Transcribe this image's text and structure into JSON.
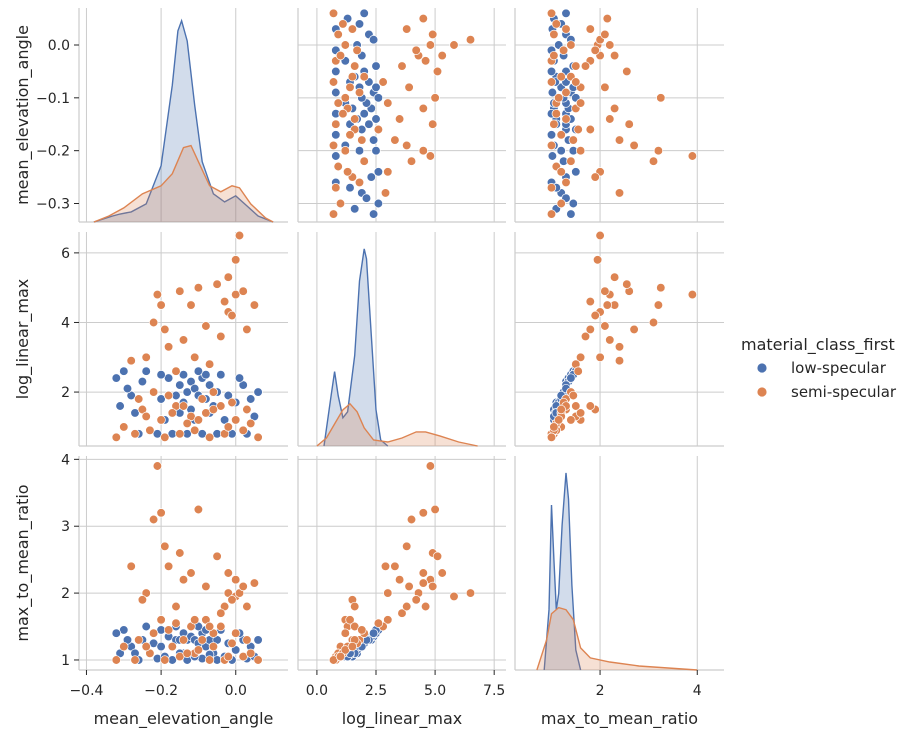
{
  "chart_data": {
    "type": "scatter",
    "kind": "pairplot",
    "variables": [
      "mean_elevation_angle",
      "log_linear_max",
      "max_to_mean_ratio"
    ],
    "hue": "material_class_first",
    "legend": {
      "title": "material_class_first",
      "placement": "right",
      "entries": [
        {
          "name": "low-specular",
          "color": "#4c72b0"
        },
        {
          "name": "semi-specular",
          "color": "#dd8452"
        }
      ]
    },
    "grid": true,
    "diagonal": "kde",
    "axes": {
      "mean_elevation_angle": {
        "range": [
          -0.42,
          0.14
        ],
        "ticks": [
          -0.4,
          -0.2,
          0.0
        ],
        "tick_labels": [
          "−0.4",
          "−0.2",
          "0.0"
        ],
        "row_range": [
          -0.335,
          0.07
        ],
        "row_ticks": [
          -0.3,
          -0.2,
          -0.1,
          0.0
        ],
        "row_tick_labels": [
          "−0.3",
          "−0.2",
          "−0.1",
          "0.0"
        ]
      },
      "log_linear_max": {
        "range": [
          -0.8,
          8.0
        ],
        "ticks": [
          0.0,
          2.5,
          5.0,
          7.5
        ],
        "tick_labels": [
          "0.0",
          "2.5",
          "5.0",
          "7.5"
        ],
        "row_range": [
          0.45,
          6.6
        ],
        "row_ticks": [
          2,
          4,
          6
        ],
        "row_tick_labels": [
          "2",
          "4",
          "6"
        ]
      },
      "max_to_mean_ratio": {
        "range": [
          0.25,
          4.55
        ],
        "ticks": [
          2,
          4
        ],
        "tick_labels": [
          "2",
          "4"
        ],
        "row_range": [
          0.85,
          4.05
        ],
        "row_ticks": [
          1,
          2,
          3,
          4
        ],
        "row_tick_labels": [
          "1",
          "2",
          "3",
          "4"
        ]
      }
    },
    "kde": {
      "mean_elevation_angle": {
        "low-specular": [
          [
            -0.38,
            0.0
          ],
          [
            -0.33,
            0.03
          ],
          [
            -0.31,
            0.04
          ],
          [
            -0.28,
            0.05
          ],
          [
            -0.24,
            0.09
          ],
          [
            -0.2,
            0.28
          ],
          [
            -0.17,
            0.68
          ],
          [
            -0.155,
            0.95
          ],
          [
            -0.145,
            1.0
          ],
          [
            -0.13,
            0.9
          ],
          [
            -0.11,
            0.58
          ],
          [
            -0.09,
            0.3
          ],
          [
            -0.06,
            0.14
          ],
          [
            -0.03,
            0.1
          ],
          [
            0.0,
            0.13
          ],
          [
            0.03,
            0.08
          ],
          [
            0.06,
            0.03
          ],
          [
            0.1,
            0.0
          ]
        ],
        "semi-specular": [
          [
            -0.38,
            0.0
          ],
          [
            -0.34,
            0.03
          ],
          [
            -0.3,
            0.07
          ],
          [
            -0.25,
            0.14
          ],
          [
            -0.2,
            0.18
          ],
          [
            -0.17,
            0.24
          ],
          [
            -0.14,
            0.37
          ],
          [
            -0.12,
            0.38
          ],
          [
            -0.1,
            0.3
          ],
          [
            -0.07,
            0.18
          ],
          [
            -0.04,
            0.15
          ],
          [
            -0.01,
            0.18
          ],
          [
            0.01,
            0.17
          ],
          [
            0.04,
            0.09
          ],
          [
            0.08,
            0.02
          ],
          [
            0.1,
            0.0
          ]
        ]
      },
      "log_linear_max": {
        "low-specular": [
          [
            0.3,
            0.0
          ],
          [
            0.6,
            0.25
          ],
          [
            0.75,
            0.37
          ],
          [
            0.9,
            0.25
          ],
          [
            1.1,
            0.14
          ],
          [
            1.3,
            0.17
          ],
          [
            1.6,
            0.45
          ],
          [
            1.8,
            0.82
          ],
          [
            2.0,
            0.98
          ],
          [
            2.1,
            0.93
          ],
          [
            2.3,
            0.55
          ],
          [
            2.5,
            0.18
          ],
          [
            2.7,
            0.03
          ],
          [
            3.0,
            0.0
          ]
        ],
        "semi-specular": [
          [
            0.0,
            0.0
          ],
          [
            0.4,
            0.04
          ],
          [
            0.8,
            0.12
          ],
          [
            1.1,
            0.18
          ],
          [
            1.4,
            0.21
          ],
          [
            1.7,
            0.17
          ],
          [
            2.0,
            0.09
          ],
          [
            2.4,
            0.03
          ],
          [
            3.0,
            0.02
          ],
          [
            3.6,
            0.04
          ],
          [
            4.2,
            0.07
          ],
          [
            4.6,
            0.07
          ],
          [
            5.2,
            0.05
          ],
          [
            6.0,
            0.02
          ],
          [
            6.8,
            0.0
          ]
        ]
      },
      "max_to_mean_ratio": {
        "low-specular": [
          [
            0.85,
            0.0
          ],
          [
            0.95,
            0.3
          ],
          [
            1.0,
            0.82
          ],
          [
            1.05,
            0.55
          ],
          [
            1.1,
            0.3
          ],
          [
            1.15,
            0.38
          ],
          [
            1.22,
            0.72
          ],
          [
            1.3,
            0.98
          ],
          [
            1.35,
            0.85
          ],
          [
            1.42,
            0.42
          ],
          [
            1.5,
            0.1
          ],
          [
            1.6,
            0.0
          ]
        ],
        "semi-specular": [
          [
            0.7,
            0.0
          ],
          [
            0.9,
            0.15
          ],
          [
            1.0,
            0.28
          ],
          [
            1.15,
            0.31
          ],
          [
            1.3,
            0.3
          ],
          [
            1.45,
            0.25
          ],
          [
            1.6,
            0.11
          ],
          [
            1.8,
            0.06
          ],
          [
            2.2,
            0.04
          ],
          [
            2.8,
            0.02
          ],
          [
            3.4,
            0.01
          ],
          [
            4.0,
            0.0
          ]
        ]
      }
    },
    "samples": {
      "low-specular": [
        [
          -0.25,
          2.3,
          1.3
        ],
        [
          -0.22,
          2.0,
          1.25
        ],
        [
          -0.2,
          1.8,
          1.2
        ],
        [
          -0.18,
          2.4,
          1.35
        ],
        [
          -0.16,
          1.9,
          1.3
        ],
        [
          -0.15,
          2.2,
          1.3
        ],
        [
          -0.14,
          2.5,
          1.4
        ],
        [
          -0.14,
          1.7,
          1.1
        ],
        [
          -0.13,
          2.0,
          1.3
        ],
        [
          -0.12,
          2.3,
          1.35
        ],
        [
          -0.12,
          1.5,
          1.05
        ],
        [
          -0.11,
          2.1,
          1.3
        ],
        [
          -0.1,
          1.9,
          1.25
        ],
        [
          -0.09,
          2.4,
          1.4
        ],
        [
          -0.08,
          1.8,
          1.2
        ],
        [
          -0.07,
          2.2,
          1.3
        ],
        [
          -0.06,
          1.6,
          1.1
        ],
        [
          -0.05,
          2.0,
          1.3
        ],
        [
          -0.04,
          2.5,
          1.45
        ],
        [
          -0.02,
          1.9,
          1.25
        ],
        [
          0.0,
          1.7,
          1.15
        ],
        [
          0.02,
          2.2,
          1.3
        ],
        [
          0.04,
          1.8,
          1.2
        ],
        [
          0.06,
          2.0,
          1.3
        ],
        [
          -0.3,
          2.6,
          1.45
        ],
        [
          -0.31,
          1.6,
          1.1
        ],
        [
          -0.28,
          1.9,
          1.2
        ],
        [
          -0.26,
          0.8,
          1.0
        ],
        [
          -0.21,
          0.8,
          1.02
        ],
        [
          -0.17,
          0.8,
          1.0
        ],
        [
          -0.13,
          0.8,
          1.0
        ],
        [
          -0.09,
          0.8,
          1.02
        ],
        [
          -0.05,
          0.8,
          1.0
        ],
        [
          -0.01,
          0.8,
          1.0
        ],
        [
          0.03,
          0.8,
          1.02
        ],
        [
          -0.19,
          1.2,
          1.05
        ],
        [
          -0.15,
          1.4,
          1.1
        ],
        [
          -0.11,
          1.2,
          1.05
        ],
        [
          -0.07,
          1.4,
          1.08
        ],
        [
          -0.03,
          1.2,
          1.05
        ],
        [
          -0.29,
          2.1,
          1.3
        ],
        [
          -0.24,
          2.6,
          1.5
        ],
        [
          -0.2,
          2.5,
          1.45
        ],
        [
          -0.1,
          2.6,
          1.5
        ],
        [
          0.05,
          1.3,
          1.05
        ],
        [
          -0.32,
          2.4,
          1.4
        ],
        [
          -0.27,
          1.4,
          1.1
        ],
        [
          -0.16,
          2.6,
          1.5
        ],
        [
          -0.08,
          2.5,
          1.45
        ],
        [
          0.01,
          2.4,
          1.4
        ]
      ],
      "semi-specular": [
        [
          -0.21,
          4.8,
          3.9
        ],
        [
          -0.2,
          4.5,
          3.2
        ],
        [
          -0.22,
          4.0,
          3.1
        ],
        [
          -0.19,
          3.8,
          2.7
        ],
        [
          -0.1,
          5.0,
          3.25
        ],
        [
          -0.15,
          4.9,
          2.6
        ],
        [
          -0.05,
          5.1,
          2.55
        ],
        [
          -0.12,
          4.5,
          2.3
        ],
        [
          -0.08,
          3.9,
          2.1
        ],
        [
          -0.02,
          4.3,
          2.0
        ],
        [
          0.0,
          5.8,
          1.95
        ],
        [
          0.01,
          6.5,
          2.0
        ],
        [
          -0.14,
          3.5,
          2.2
        ],
        [
          -0.24,
          3.0,
          2.0
        ],
        [
          -0.18,
          3.3,
          2.4
        ],
        [
          -0.03,
          4.6,
          1.8
        ],
        [
          -0.28,
          2.9,
          2.4
        ],
        [
          -0.25,
          1.5,
          1.9
        ],
        [
          -0.2,
          1.2,
          1.6
        ],
        [
          -0.16,
          1.6,
          1.8
        ],
        [
          -0.12,
          1.3,
          1.5
        ],
        [
          -0.08,
          1.4,
          1.6
        ],
        [
          -0.04,
          1.6,
          1.5
        ],
        [
          0.0,
          1.2,
          1.4
        ],
        [
          0.03,
          1.5,
          1.3
        ],
        [
          -0.3,
          1.0,
          1.2
        ],
        [
          -0.27,
          0.8,
          1.0
        ],
        [
          -0.23,
          0.9,
          1.1
        ],
        [
          -0.19,
          0.7,
          1.0
        ],
        [
          -0.15,
          0.8,
          1.05
        ],
        [
          -0.11,
          0.9,
          1.1
        ],
        [
          -0.07,
          0.7,
          1.0
        ],
        [
          -0.03,
          0.8,
          1.0
        ],
        [
          0.02,
          0.9,
          1.05
        ],
        [
          0.06,
          0.7,
          1.0
        ],
        [
          -0.32,
          0.7,
          1.0
        ],
        [
          -0.26,
          1.8,
          1.3
        ],
        [
          -0.22,
          2.0,
          1.4
        ],
        [
          -0.17,
          1.4,
          1.2
        ],
        [
          -0.13,
          1.1,
          1.1
        ],
        [
          -0.09,
          1.8,
          1.3
        ],
        [
          -0.06,
          2.0,
          1.4
        ],
        [
          -0.01,
          1.7,
          1.25
        ],
        [
          0.04,
          1.1,
          1.1
        ],
        [
          -0.24,
          1.3,
          1.2
        ],
        [
          -0.18,
          1.9,
          1.45
        ],
        [
          -0.14,
          1.6,
          1.3
        ],
        [
          -0.1,
          1.2,
          1.15
        ],
        [
          -0.06,
          1.5,
          1.2
        ],
        [
          -0.02,
          1.0,
          1.05
        ],
        [
          0.0,
          4.8,
          2.2
        ],
        [
          0.02,
          4.9,
          2.1
        ],
        [
          -0.01,
          4.2,
          1.9
        ],
        [
          0.05,
          4.5,
          2.15
        ],
        [
          -0.04,
          3.6,
          1.7
        ],
        [
          -0.11,
          3.0,
          1.6
        ],
        [
          -0.07,
          2.8,
          1.5
        ],
        [
          -0.16,
          2.6,
          1.55
        ],
        [
          0.03,
          3.8,
          1.8
        ],
        [
          -0.02,
          5.3,
          2.3
        ]
      ]
    }
  }
}
